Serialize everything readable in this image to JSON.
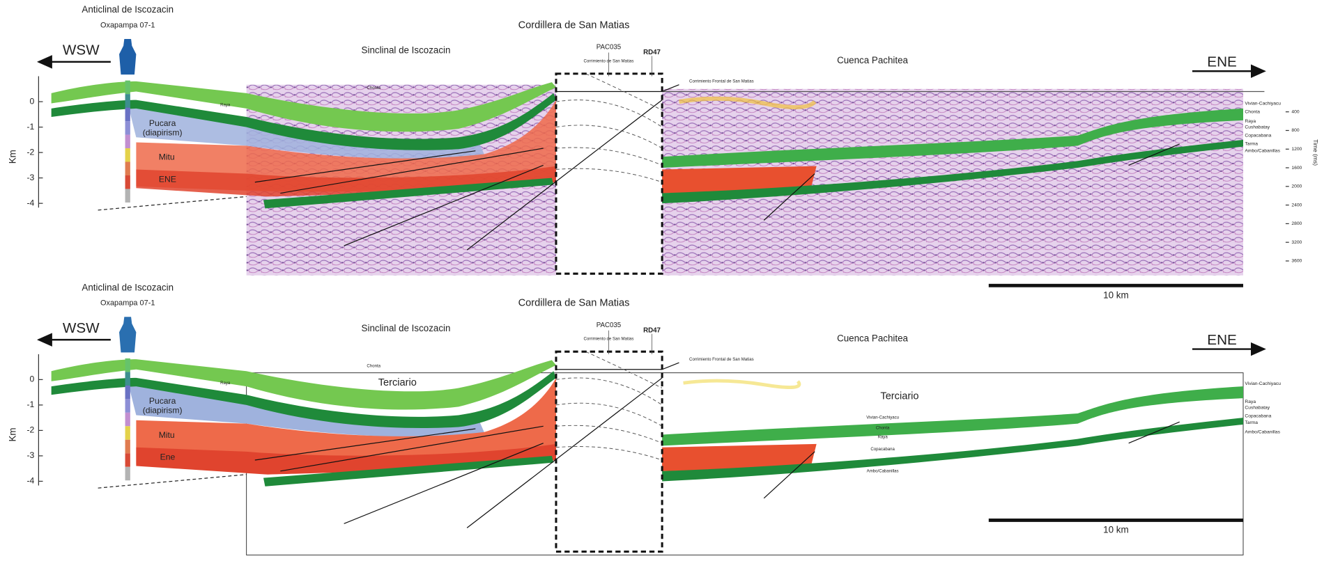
{
  "panels": [
    {
      "well_title": "Anticlinal de Iscozacin",
      "well_name": "Oxapampa 07-1",
      "west": "WSW",
      "east": "ENE",
      "cordillera": "Cordillera de San Matias",
      "sinclinal": "Sinclinal de Iscozacin",
      "pac": "PAC035",
      "rd": "RD47",
      "corrimiento": "Corrimiento de San Matias",
      "frontal": "Corrimiento Frontal de San Matias",
      "cuenca": "Cuenca Pachitea",
      "km": "Km",
      "depth_ticks": [
        0,
        -1,
        -2,
        -3,
        -4
      ],
      "layer_labels": [
        "Chonta",
        "Raya",
        "Pucara",
        "(diapirism)",
        "Mitu",
        "ENE"
      ],
      "horizons": [
        "Vivian-Cachiyacu",
        "Chonta",
        "Raya",
        "Cushabatay",
        "Copacabana",
        "Tarma",
        "Ambo/Cabanillas"
      ],
      "time_label": "Time (ms)",
      "time_ticks": [
        400,
        800,
        1200,
        1600,
        2000,
        2400,
        2800,
        3200,
        3600
      ],
      "scale": "10 km"
    },
    {
      "well_title": "Anticlinal de Iscozacin",
      "well_name": "Oxapampa 07-1",
      "west": "WSW",
      "east": "ENE",
      "cordillera": "Cordillera de San Matias",
      "sinclinal": "Sinclinal de Iscozacin",
      "pac": "PAC035",
      "rd": "RD47",
      "corrimiento": "Corrimiento de San Matias",
      "frontal": "Corrimiento Frontal de San Matias",
      "cuenca": "Cuenca Pachitea",
      "km": "Km",
      "depth_ticks": [
        0,
        -1,
        -2,
        -3,
        -4
      ],
      "layer_labels": [
        "Chonta",
        "Raya",
        "Pucara",
        "(diapirism)",
        "Mitu",
        "Ene"
      ],
      "terciario": [
        "Terciario",
        "Terciario"
      ],
      "inner_horizons": [
        "Vivian-Cachiyacu",
        "Chonta",
        "Raya",
        "Copacabana",
        "Ambo/Cabanillas"
      ],
      "horizons": [
        "Vivian-Cachiyacu",
        "Raya",
        "Cushabatay",
        "Copacabana",
        "Tarma",
        "Ambo/Cabanillas"
      ],
      "scale": "10 km"
    }
  ]
}
